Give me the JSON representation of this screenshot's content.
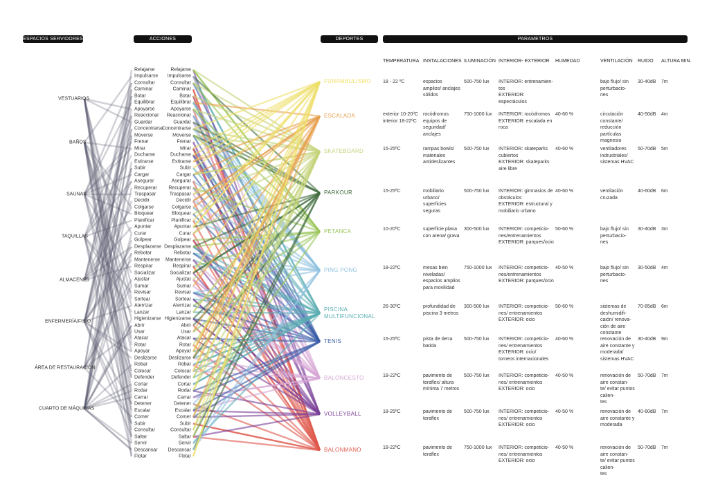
{
  "headers": {
    "spaces": "ESPACIOS SERVIDORES",
    "actions": "ACCIONES",
    "sports": "DEPORTES",
    "parameters": "PARAMETROS"
  },
  "spaces": [
    "VESTUARIOS",
    "BAÑOS",
    "SAUNAS",
    "TAQUILLAS",
    "ALMACENES",
    "ENFERMERÍA/FISIO",
    "ÁREA DE RESTAURACIÓN",
    "CUARTO DE MÁQUINAS"
  ],
  "actions": [
    "Relajarse",
    "Impulsarse",
    "Consultar",
    "Caminar",
    "Botar",
    "Equilibrar",
    "Apoyarse",
    "Reaccionar",
    "Guardar",
    "Concentrarse",
    "Moverse",
    "Frenar",
    "Mirar",
    "Ducharse",
    "Estirarse",
    "Subir",
    "Cargar",
    "Asegurar",
    "Recuperar",
    "Traspasar",
    "Decidir",
    "Colgarse",
    "Bloquear",
    "Planificar",
    "Apuntar",
    "Curar",
    "Golpear",
    "Desplazarse",
    "Rebotar",
    "Mantenerse",
    "Respirar",
    "Socializar",
    "Ajustar",
    "Sumar",
    "Revisar",
    "Sortear",
    "Aterrizar",
    "Lanzar",
    "Higienizarse",
    "Abrir",
    "Usar",
    "Atacar",
    "Rotar",
    "Apoyar",
    "Deslizarse",
    "Robar",
    "Colocar",
    "Defender",
    "Cortar",
    "Rodar",
    "Carrar",
    "Detener",
    "Escalar",
    "Comer",
    "Subir",
    "Consultar",
    "Saltar",
    "Servir",
    "Descansar",
    "Flotar"
  ],
  "sports": [
    {
      "name": "FUNAMBULISMO",
      "color": "#efe06a"
    },
    {
      "name": "ESCALADA",
      "color": "#e8a04e"
    },
    {
      "name": "SKATEBOARD",
      "color": "#c5d47a"
    },
    {
      "name": "PARKOUR",
      "color": "#3f6a3c"
    },
    {
      "name": "PETANCA",
      "color": "#98c456"
    },
    {
      "name": "PING PONG",
      "color": "#8ec0e0"
    },
    {
      "name": "PISCINA\nMULTIFUNCIONAL",
      "color": "#5aaeb3"
    },
    {
      "name": "TENIS",
      "color": "#3b5ea8"
    },
    {
      "name": "BALONCESTO",
      "color": "#d7a6d6"
    },
    {
      "name": "VOLLEYBALL",
      "color": "#7a3f98"
    },
    {
      "name": "BALONMANO",
      "color": "#e0584c"
    }
  ],
  "parameters": {
    "columns": [
      "TEMPERATURA",
      "INSTALACIONES",
      "ILUMINACIÓN",
      "INTERIOR- EXTERIOR",
      "HUMEDAD",
      "VENTILACIÓN",
      "RUIDO",
      "ALTURA MIN."
    ],
    "rows": [
      {
        "temp": "18 - 22 ºC",
        "inst": "espacios amplios/ anclajes sólidos",
        "lum": "500-750 lux",
        "io": "INTERIOR: entrenamien-\ntos\nEXTERIOR: espectáculos",
        "hum": "",
        "vent": "bajo flujo/ sin perturbacio-\nnes",
        "ruido": "30-40dB",
        "altura": "7m"
      },
      {
        "temp": "exterior 10-20ºC\ninterior 18-22ºC",
        "inst": "rocódromos equipos de seguridad/ anclajes",
        "lum": "750-1000 lux",
        "io": "INTERIOR: rocódromos\nEXTERIOR: escalada en roca",
        "hum": "40-60 %",
        "vent": "circulación constante/ reducción partículas magnesio",
        "ruido": "40-50dB",
        "altura": "4m"
      },
      {
        "temp": "15-25ºC",
        "inst": "rampas bowls/ materiales antideslizantes",
        "lum": "500-750 lux",
        "io": "INTERIOR: skateparks cubiertos\nEXTERIOR: skateparks aire libre",
        "hum": "40-60 %",
        "vent": "ventiladores indrustriales/ sistemas HVAC",
        "ruido": "50-70dB",
        "altura": "5m"
      },
      {
        "temp": "15-25ºC",
        "inst": "mobiliario urbano/ superficies seguras",
        "lum": "500-750 lux",
        "io": "INTERIOR: gimnasios de obstáculos\nEXTERIOR: estructural y mobiliario urbano",
        "hum": "40-60 %",
        "vent": "ventilación cruzada",
        "ruido": "40-60dB",
        "altura": "6m"
      },
      {
        "temp": "10-20ºC",
        "inst": "superficie plana con arena/ grava",
        "lum": "300-500 lux",
        "io": "INTERIOR: competicio-\nnes/entrenamientos\nEXTERIOR: parques/ocio",
        "hum": "50-60 %",
        "vent": "bajo flujo/ sin perturbacio-\nnes",
        "ruido": "30-40dB",
        "altura": "3m"
      },
      {
        "temp": "18-22ºC",
        "inst": "mesas bien niveladas/ espacios amplios para movilidad",
        "lum": "750-1000 lux",
        "io": "INTERIOR: competicio-\nnes/entrenamientos\nEXTERIOR: parques/ocio",
        "hum": "40-50 %",
        "vent": "bajo flujo/ sin perturbacio-\nnes",
        "ruido": "30-50dB",
        "altura": "4m"
      },
      {
        "temp": "26-30ºC",
        "inst": "profundidad de piscina 3 metros",
        "lum": "300-500 lux",
        "io": "INTERIOR: competicio-\nnes/ entrenamientos\nEXTERIOR: ocio",
        "hum": "50-60 %",
        "vent": "sistemas de deshumidifi-\ncaión/ renova-\nción de aire constante",
        "ruido": "70-85dB",
        "altura": "6m"
      },
      {
        "temp": "15-25ºC",
        "inst": "pista de tierra batida",
        "lum": "500-750 lux",
        "io": "INTERIOR: competicio-\nnes/ entrenamientos\nEXTERIOR: ocio/\ntorneos internacionales",
        "hum": "40-60 %",
        "vent": "renovación de aire constante y moderada/ sistemas HVAC",
        "ruido": "30-40dB",
        "altura": "9m"
      },
      {
        "temp": "18-22ºC",
        "inst": "pavimento de teraflex/ altura mínima 7 metros",
        "lum": "500-750 lux",
        "io": "INTERIOR: competicio-\nnes/ entrenamientos\nEXTERIOR: ocio",
        "hum": "40-50 %",
        "vent": "renovación de aire constan-\nte/ evitar puntos calien-\ntes",
        "ruido": "50-70dB",
        "altura": "7m"
      },
      {
        "temp": "18-25ºC",
        "inst": "pavimento de teraflex",
        "lum": "500-750 lux",
        "io": "INTERIOR: competicio-\nnes/ entrenamientos\nEXTERIOR: ocio",
        "hum": "40-50 %",
        "vent": "renovación de aire constante y moderada",
        "ruido": "40-60dB",
        "altura": "7m"
      },
      {
        "temp": "18-22ºC",
        "inst": "pavimento de teraflex",
        "lum": "750-1000 lux",
        "io": "INTERIOR: competicio-\nnes/ entrenamientos\nEXTERIOR: ocio",
        "hum": "40-50 %",
        "vent": "renovación de aire constan-\nte/ evitar puntos calien-\ntes",
        "ruido": "50-70dB",
        "altura": "7m"
      }
    ]
  }
}
